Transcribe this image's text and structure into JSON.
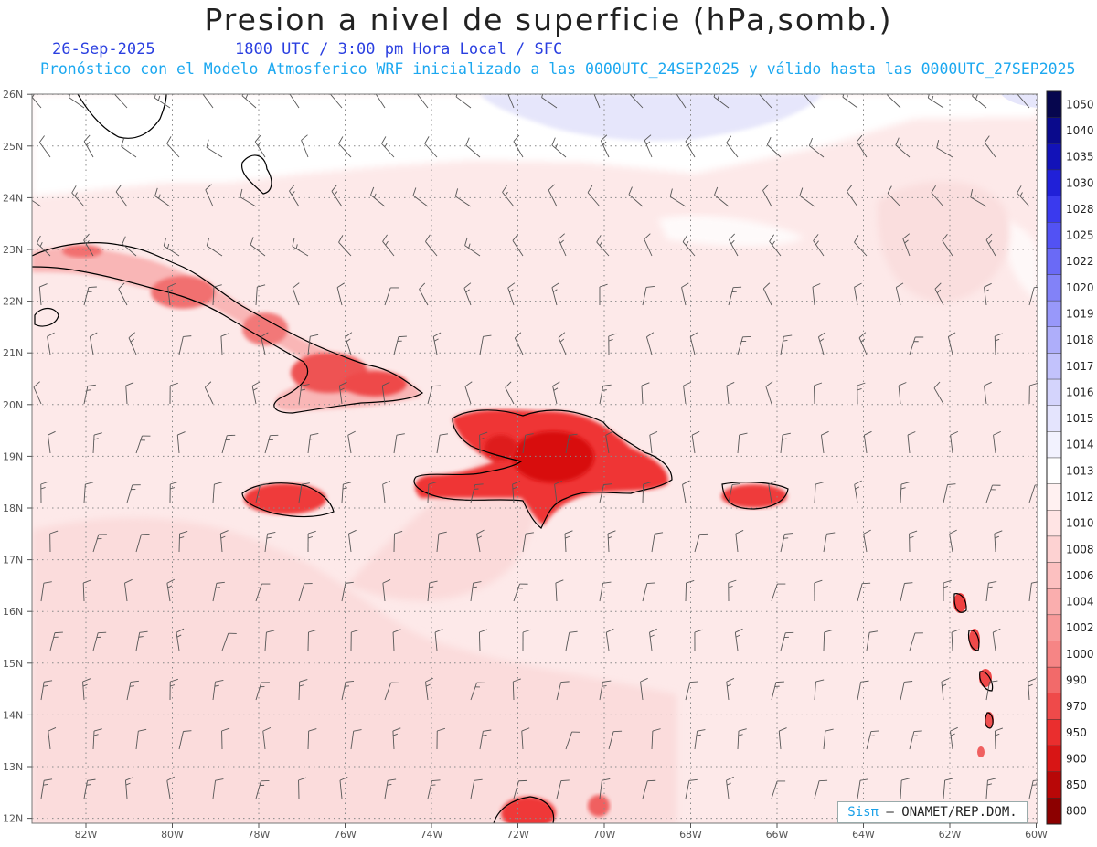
{
  "header": {
    "title": "Presion a nivel de superficie (hPa,somb.)",
    "date": "26-Sep-2025",
    "time_info": "1800 UTC / 3:00 pm Hora Local / SFC",
    "model_info": "Pronóstico con el Modelo Atmosferico WRF inicializado a las 0000UTC_24SEP2025 y válido hasta las  0000UTC_27SEP2025"
  },
  "axes": {
    "lat_labels": [
      "26N",
      "25N",
      "24N",
      "23N",
      "22N",
      "21N",
      "20N",
      "19N",
      "18N",
      "17N",
      "16N",
      "15N",
      "14N",
      "13N",
      "12N"
    ],
    "lon_labels": [
      "82W",
      "80W",
      "78W",
      "76W",
      "74W",
      "72W",
      "70W",
      "68W",
      "66W",
      "64W",
      "62W",
      "60W"
    ]
  },
  "colorbar": {
    "levels": [
      "1050",
      "1040",
      "1035",
      "1030",
      "1028",
      "1025",
      "1022",
      "1020",
      "1019",
      "1018",
      "1017",
      "1016",
      "1015",
      "1014",
      "1013",
      "1012",
      "1010",
      "1008",
      "1006",
      "1004",
      "1002",
      "1000",
      "990",
      "970",
      "950",
      "900",
      "850",
      "800"
    ],
    "colors": [
      "#06064e",
      "#0a0a8c",
      "#1212b8",
      "#2020d8",
      "#3a3aee",
      "#5252f4",
      "#6a6af6",
      "#8282f8",
      "#9898fa",
      "#aeaefa",
      "#c2c2fc",
      "#d4d4fc",
      "#e4e4fd",
      "#f2f2fe",
      "#ffffff",
      "#fff1f1",
      "#ffe4e4",
      "#fdd2d2",
      "#fcc0c0",
      "#faaeae",
      "#f89a9a",
      "#f68585",
      "#f26a6a",
      "#ef4a4a",
      "#ea2e2e",
      "#d81515",
      "#b80707",
      "#8c0000"
    ]
  },
  "credit": {
    "brand": "Sisπ",
    "text": "– ONAMET/REP.DOM."
  }
}
